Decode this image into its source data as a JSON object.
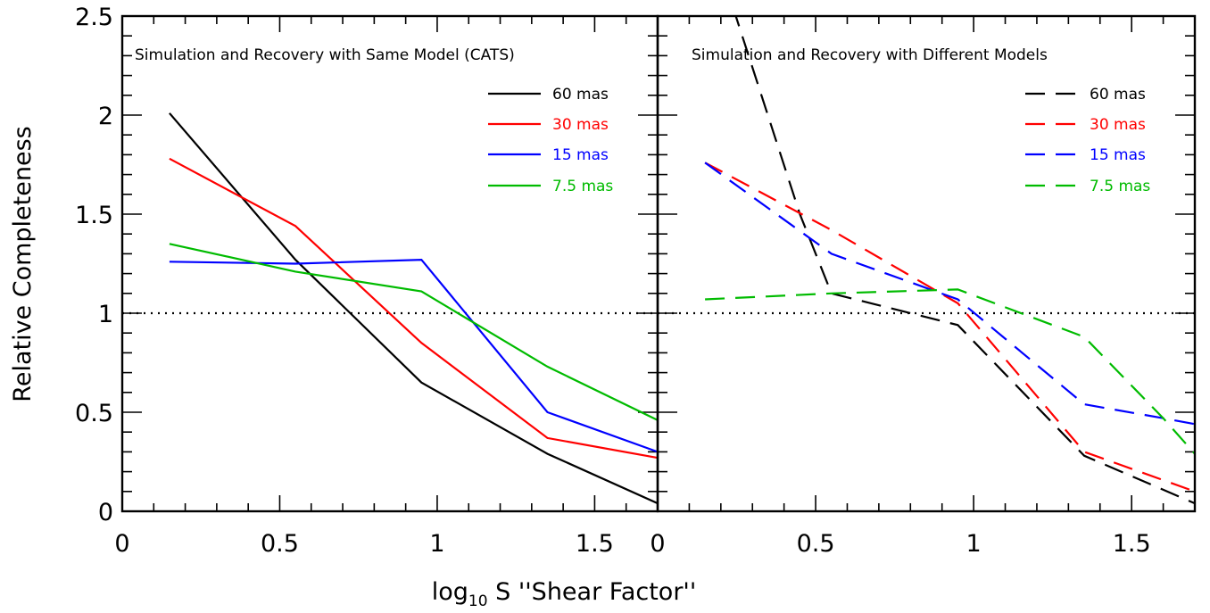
{
  "chart_data": [
    {
      "type": "line",
      "title": "Simulation and Recovery with Same Model (CATS)",
      "xlabel": "log10 S ''Shear Factor''",
      "ylabel": "Relative Completeness",
      "xlim": [
        0,
        1.7
      ],
      "ylim": [
        0,
        2.5
      ],
      "xticks": [
        "0",
        "0.5",
        "1",
        "1.5"
      ],
      "yticks": [
        "0",
        "0.5",
        "1",
        "1.5",
        "2",
        "2.5"
      ],
      "reference_line": {
        "y": 1,
        "style": "dotted"
      },
      "legend_position": "top-right",
      "line_style": "solid",
      "series": [
        {
          "name": "60 mas",
          "color": "#000000",
          "x": [
            0.15,
            0.55,
            0.95,
            1.35,
            1.7
          ],
          "y": [
            2.01,
            1.27,
            0.65,
            0.29,
            0.04
          ]
        },
        {
          "name": "30 mas",
          "color": "#ff0000",
          "x": [
            0.15,
            0.55,
            0.95,
            1.35,
            1.7
          ],
          "y": [
            1.78,
            1.44,
            0.85,
            0.37,
            0.27
          ]
        },
        {
          "name": "15 mas",
          "color": "#0000ff",
          "x": [
            0.15,
            0.55,
            0.95,
            1.35,
            1.7
          ],
          "y": [
            1.26,
            1.25,
            1.27,
            0.5,
            0.3
          ]
        },
        {
          "name": "7.5 mas",
          "color": "#00bb00",
          "x": [
            0.15,
            0.55,
            0.95,
            1.35,
            1.7
          ],
          "y": [
            1.35,
            1.21,
            1.11,
            0.73,
            0.46
          ]
        }
      ]
    },
    {
      "type": "line",
      "title": "Simulation and Recovery with Different Models",
      "xlabel": "log10 S ''Shear Factor''",
      "ylabel": "",
      "xlim": [
        0,
        1.7
      ],
      "ylim": [
        0,
        2.5
      ],
      "xticks": [
        "0",
        "0.5",
        "1",
        "1.5"
      ],
      "yticks": [],
      "reference_line": {
        "y": 1,
        "style": "dotted"
      },
      "legend_position": "top-right",
      "line_style": "dashed",
      "series": [
        {
          "name": "60 mas",
          "color": "#000000",
          "x": [
            0.15,
            0.45,
            0.55,
            0.95,
            1.35,
            1.7
          ],
          "y": [
            2.98,
            1.5,
            1.1,
            0.94,
            0.28,
            0.04
          ]
        },
        {
          "name": "30 mas",
          "color": "#ff0000",
          "x": [
            0.15,
            0.55,
            0.95,
            1.35,
            1.7
          ],
          "y": [
            1.76,
            1.42,
            1.05,
            0.3,
            0.1
          ]
        },
        {
          "name": "15 mas",
          "color": "#0000ff",
          "x": [
            0.15,
            0.55,
            0.95,
            1.35,
            1.6,
            1.7
          ],
          "y": [
            1.76,
            1.3,
            1.07,
            0.54,
            0.47,
            0.44
          ]
        },
        {
          "name": "7.5 mas",
          "color": "#00bb00",
          "x": [
            0.15,
            0.55,
            0.95,
            1.35,
            1.6,
            1.7
          ],
          "y": [
            1.07,
            1.1,
            1.12,
            0.88,
            0.47,
            0.29
          ]
        }
      ]
    }
  ],
  "axis_title_x": {
    "prefix": "log",
    "subscript": "10",
    "suffix": " S ''Shear Factor''"
  }
}
